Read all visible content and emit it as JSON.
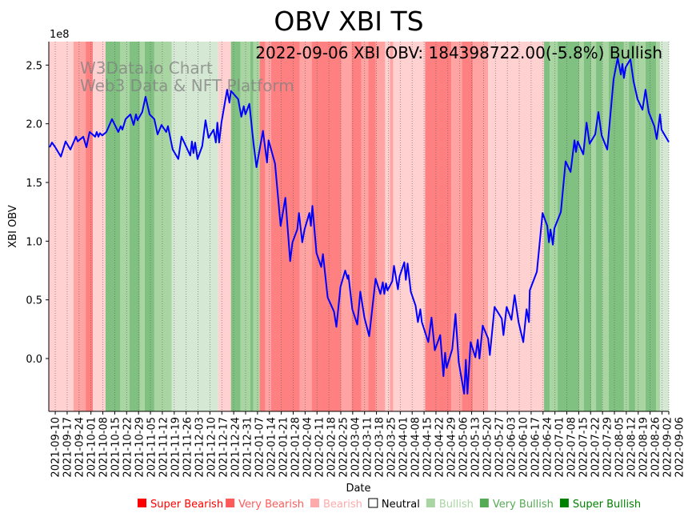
{
  "chart_data": {
    "type": "line",
    "title": "OBV XBI TS",
    "annotation": "2022-09-06 XBI OBV: 184398722.00(-5.8%) Bullish",
    "watermark": [
      "W3Data.io Chart",
      "Web3 Data & NFT Platform"
    ],
    "xlabel": "Date",
    "ylabel": "XBI OBV",
    "y_scale_label": "1e8",
    "x_origin_date": "2021-09-10",
    "x_units": "days since x_origin_date",
    "y_units": "1e8",
    "xlim": [
      -3.8,
      361
    ],
    "ylim": [
      -0.45,
      2.7
    ],
    "yticks": [
      0.0,
      0.5,
      1.0,
      1.5,
      2.0,
      2.5
    ],
    "ytick_labels": [
      "0.0",
      "0.5",
      "1.0",
      "1.5",
      "2.0",
      "2.5"
    ],
    "xtick_labels": [
      "2021-09-10",
      "2021-09-17",
      "2021-09-24",
      "2021-10-01",
      "2021-10-08",
      "2021-10-15",
      "2021-10-22",
      "2021-10-29",
      "2021-11-05",
      "2021-11-12",
      "2021-11-19",
      "2021-11-26",
      "2021-12-03",
      "2021-12-10",
      "2021-12-17",
      "2021-12-24",
      "2021-12-31",
      "2022-01-07",
      "2022-01-14",
      "2022-01-21",
      "2022-01-28",
      "2022-02-04",
      "2022-02-11",
      "2022-02-18",
      "2022-02-25",
      "2022-03-04",
      "2022-03-11",
      "2022-03-18",
      "2022-03-25",
      "2022-04-01",
      "2022-04-08",
      "2022-04-15",
      "2022-04-22",
      "2022-04-29",
      "2022-05-06",
      "2022-05-13",
      "2022-05-20",
      "2022-05-27",
      "2022-06-03",
      "2022-06-10",
      "2022-06-17",
      "2022-06-24",
      "2022-07-01",
      "2022-07-08",
      "2022-07-15",
      "2022-07-22",
      "2022-07-29",
      "2022-08-05",
      "2022-08-12",
      "2022-08-19",
      "2022-08-26",
      "2022-09-02",
      "2022-09-06"
    ],
    "xtick_days": [
      0,
      7,
      14,
      21,
      28,
      35,
      42,
      49,
      56,
      63,
      70,
      77,
      84,
      91,
      98,
      105,
      112,
      119,
      126,
      133,
      140,
      147,
      154,
      161,
      168,
      175,
      182,
      189,
      196,
      203,
      210,
      217,
      224,
      231,
      238,
      245,
      252,
      259,
      266,
      273,
      280,
      287,
      294,
      301,
      308,
      315,
      322,
      329,
      336,
      343,
      350,
      357,
      361
    ],
    "grid": "vertical dotted",
    "line_color": "#0000ff",
    "series": [
      {
        "name": "XBI OBV",
        "points": [
          [
            -3.3,
            1.8
          ],
          [
            -1.9,
            1.84
          ],
          [
            0,
            1.8
          ],
          [
            3.3,
            1.72
          ],
          [
            6.1,
            1.85
          ],
          [
            8.9,
            1.78
          ],
          [
            12.2,
            1.89
          ],
          [
            13.2,
            1.85
          ],
          [
            16.5,
            1.89
          ],
          [
            18.3,
            1.8
          ],
          [
            20.2,
            1.93
          ],
          [
            23.5,
            1.89
          ],
          [
            24.4,
            1.93
          ],
          [
            25.4,
            1.89
          ],
          [
            26.3,
            1.92
          ],
          [
            27.7,
            1.9
          ],
          [
            30.1,
            1.93
          ],
          [
            33.4,
            2.04
          ],
          [
            37.1,
            1.93
          ],
          [
            38.5,
            1.98
          ],
          [
            39.5,
            1.95
          ],
          [
            41.4,
            2.04
          ],
          [
            44.2,
            2.08
          ],
          [
            46.1,
            1.99
          ],
          [
            47.5,
            2.08
          ],
          [
            48.4,
            2.03
          ],
          [
            51.2,
            2.1
          ],
          [
            53.1,
            2.23
          ],
          [
            55.5,
            2.08
          ],
          [
            58.3,
            2.04
          ],
          [
            60.2,
            1.91
          ],
          [
            62.5,
            1.99
          ],
          [
            65.3,
            1.93
          ],
          [
            66.3,
            1.98
          ],
          [
            69.1,
            1.78
          ],
          [
            72.4,
            1.7
          ],
          [
            74.3,
            1.89
          ],
          [
            79.4,
            1.73
          ],
          [
            80.4,
            1.85
          ],
          [
            81.3,
            1.75
          ],
          [
            82.3,
            1.84
          ],
          [
            83.7,
            1.7
          ],
          [
            86.5,
            1.81
          ],
          [
            88.4,
            2.03
          ],
          [
            90.2,
            1.88
          ],
          [
            93.1,
            1.95
          ],
          [
            94.5,
            1.84
          ],
          [
            95.4,
            2.01
          ],
          [
            96.4,
            1.84
          ],
          [
            97.8,
            2.01
          ],
          [
            101.1,
            2.29
          ],
          [
            102.5,
            2.18
          ],
          [
            103.4,
            2.28
          ],
          [
            107.6,
            2.21
          ],
          [
            109.5,
            2.06
          ],
          [
            110.9,
            2.15
          ],
          [
            111.9,
            2.08
          ],
          [
            114.2,
            2.17
          ],
          [
            116.6,
            1.84
          ],
          [
            118.4,
            1.63
          ],
          [
            122.2,
            1.94
          ],
          [
            124.6,
            1.67
          ],
          [
            125.5,
            1.86
          ],
          [
            129.3,
            1.66
          ],
          [
            132.6,
            1.13
          ],
          [
            135.4,
            1.37
          ],
          [
            138.2,
            0.83
          ],
          [
            139.6,
            0.99
          ],
          [
            142.4,
            1.1
          ],
          [
            143.4,
            1.24
          ],
          [
            145.3,
            0.99
          ],
          [
            146.7,
            1.1
          ],
          [
            149.5,
            1.24
          ],
          [
            150.4,
            1.13
          ],
          [
            151.3,
            1.3
          ],
          [
            153.7,
            0.9
          ],
          [
            156.5,
            0.78
          ],
          [
            157.5,
            0.89
          ],
          [
            160.3,
            0.52
          ],
          [
            164.0,
            0.4
          ],
          [
            165.4,
            0.27
          ],
          [
            167.8,
            0.61
          ],
          [
            170.6,
            0.75
          ],
          [
            172.0,
            0.68
          ],
          [
            172.5,
            0.71
          ],
          [
            174.8,
            0.42
          ],
          [
            177.7,
            0.29
          ],
          [
            179.5,
            0.57
          ],
          [
            181.9,
            0.35
          ],
          [
            184.7,
            0.19
          ],
          [
            188.5,
            0.68
          ],
          [
            191.3,
            0.55
          ],
          [
            192.7,
            0.65
          ],
          [
            193.6,
            0.55
          ],
          [
            194.6,
            0.64
          ],
          [
            195.5,
            0.58
          ],
          [
            198.3,
            0.66
          ],
          [
            199.3,
            0.79
          ],
          [
            201.6,
            0.59
          ],
          [
            202.6,
            0.7
          ],
          [
            205.4,
            0.82
          ],
          [
            206.3,
            0.67
          ],
          [
            207.3,
            0.81
          ],
          [
            209.2,
            0.57
          ],
          [
            212.0,
            0.45
          ],
          [
            213.4,
            0.31
          ],
          [
            214.8,
            0.42
          ],
          [
            215.7,
            0.31
          ],
          [
            219.5,
            0.14
          ],
          [
            221.4,
            0.35
          ],
          [
            223.3,
            0.07
          ],
          [
            226.5,
            0.2
          ],
          [
            228.4,
            -0.15
          ],
          [
            229.4,
            0.05
          ],
          [
            230.3,
            -0.08
          ],
          [
            233.6,
            0.08
          ],
          [
            235.5,
            0.38
          ],
          [
            237.4,
            -0.03
          ],
          [
            240.6,
            -0.3
          ],
          [
            241.6,
            -0.01
          ],
          [
            242.5,
            -0.3
          ],
          [
            244.4,
            0.14
          ],
          [
            247.2,
            0.01
          ],
          [
            248.6,
            0.16
          ],
          [
            249.6,
            0.0
          ],
          [
            251.5,
            0.28
          ],
          [
            254.7,
            0.17
          ],
          [
            255.7,
            0.03
          ],
          [
            258.5,
            0.44
          ],
          [
            262.7,
            0.34
          ],
          [
            263.7,
            0.2
          ],
          [
            265.6,
            0.44
          ],
          [
            268.4,
            0.33
          ],
          [
            270.3,
            0.54
          ],
          [
            272.6,
            0.31
          ],
          [
            275.4,
            0.14
          ],
          [
            277.3,
            0.42
          ],
          [
            278.7,
            0.31
          ],
          [
            279.2,
            0.58
          ],
          [
            283.4,
            0.74
          ],
          [
            286.7,
            1.24
          ],
          [
            289.5,
            1.13
          ],
          [
            290.5,
            0.99
          ],
          [
            291.4,
            1.1
          ],
          [
            292.8,
            0.97
          ],
          [
            293.7,
            1.11
          ],
          [
            297.5,
            1.25
          ],
          [
            300.3,
            1.68
          ],
          [
            303.2,
            1.59
          ],
          [
            305.5,
            1.86
          ],
          [
            306.4,
            1.76
          ],
          [
            307.4,
            1.85
          ],
          [
            310.7,
            1.74
          ],
          [
            312.6,
            2.01
          ],
          [
            314.4,
            1.83
          ],
          [
            317.7,
            1.91
          ],
          [
            319.6,
            2.1
          ],
          [
            321.5,
            1.9
          ],
          [
            324.8,
            1.78
          ],
          [
            328.5,
            2.38
          ],
          [
            330.9,
            2.56
          ],
          [
            332.8,
            2.42
          ],
          [
            333.7,
            2.51
          ],
          [
            334.6,
            2.39
          ],
          [
            335.6,
            2.48
          ],
          [
            338.4,
            2.55
          ],
          [
            340.3,
            2.36
          ],
          [
            342.6,
            2.21
          ],
          [
            345.5,
            2.12
          ],
          [
            347.3,
            2.29
          ],
          [
            349.2,
            2.1
          ],
          [
            352.5,
            1.98
          ],
          [
            353.9,
            1.87
          ],
          [
            355.8,
            2.08
          ],
          [
            356.7,
            1.95
          ],
          [
            361,
            1.844
          ]
        ]
      }
    ],
    "band_colors": {
      "super_bearish": "#ff8080",
      "very_bearish": "#ffa3a3",
      "bearish": "#ffd1d1",
      "bullish": "#d5e8d4",
      "very_bullish": "#a8d5a1",
      "super_bullish": "#80c080"
    },
    "bands": [
      [
        -4.2,
        10.8,
        "bearish"
      ],
      [
        10.8,
        17.9,
        "very_bearish"
      ],
      [
        17.9,
        22.1,
        "super_bearish"
      ],
      [
        22.1,
        29.6,
        "bearish"
      ],
      [
        29.6,
        38.1,
        "super_bullish"
      ],
      [
        38.1,
        43.7,
        "very_bullish"
      ],
      [
        43.7,
        49.8,
        "super_bullish"
      ],
      [
        49.8,
        52.6,
        "very_bullish"
      ],
      [
        52.6,
        58.3,
        "super_bullish"
      ],
      [
        58.3,
        68.6,
        "very_bullish"
      ],
      [
        68.6,
        95.9,
        "bullish"
      ],
      [
        95.9,
        103.4,
        "bearish"
      ],
      [
        103.4,
        109,
        "super_bullish"
      ],
      [
        109,
        114.7,
        "very_bullish"
      ],
      [
        114.7,
        116.6,
        "super_bullish"
      ],
      [
        116.6,
        120.3,
        "very_bullish"
      ],
      [
        120.3,
        123.6,
        "super_bearish"
      ],
      [
        123.6,
        126.9,
        "very_bearish"
      ],
      [
        126.9,
        143.8,
        "super_bearish"
      ],
      [
        143.8,
        150.9,
        "very_bearish"
      ],
      [
        150.9,
        168.3,
        "super_bearish"
      ],
      [
        168.3,
        174.4,
        "very_bearish"
      ],
      [
        174.4,
        180,
        "super_bearish"
      ],
      [
        180,
        184.2,
        "very_bearish"
      ],
      [
        184.2,
        188.5,
        "super_bearish"
      ],
      [
        188.5,
        194.1,
        "very_bearish"
      ],
      [
        194.1,
        196.9,
        "bearish"
      ],
      [
        196.9,
        198.8,
        "very_bearish"
      ],
      [
        198.8,
        217.6,
        "bearish"
      ],
      [
        217.6,
        233.1,
        "super_bearish"
      ],
      [
        233.1,
        239.2,
        "very_bearish"
      ],
      [
        239.2,
        245.8,
        "super_bearish"
      ],
      [
        245.8,
        254.7,
        "very_bearish"
      ],
      [
        254.7,
        287.6,
        "bearish"
      ],
      [
        287.6,
        290.9,
        "super_bullish"
      ],
      [
        290.9,
        295.6,
        "very_bullish"
      ],
      [
        295.6,
        308.3,
        "super_bullish"
      ],
      [
        308.3,
        311.1,
        "very_bullish"
      ],
      [
        311.1,
        315.4,
        "super_bullish"
      ],
      [
        315.4,
        318.2,
        "very_bullish"
      ],
      [
        318.2,
        321.9,
        "super_bullish"
      ],
      [
        321.9,
        325.7,
        "very_bullish"
      ],
      [
        325.7,
        334.6,
        "super_bullish"
      ],
      [
        334.6,
        337.5,
        "very_bullish"
      ],
      [
        337.5,
        341.2,
        "super_bullish"
      ],
      [
        341.2,
        347.3,
        "very_bullish"
      ],
      [
        347.3,
        353.5,
        "super_bullish"
      ],
      [
        353.5,
        355.8,
        "very_bullish"
      ],
      [
        355.8,
        361,
        "bullish"
      ]
    ],
    "legend": {
      "placement": "bottom-right",
      "items": [
        {
          "label": "Super Bearish",
          "color": "#ff0000"
        },
        {
          "label": "Very Bearish",
          "color": "#ff5a5a"
        },
        {
          "label": "Bearish",
          "color": "#ffaaaa"
        },
        {
          "label": "Neutral",
          "color": "#000000",
          "hollow": true
        },
        {
          "label": "Bullish",
          "color": "#a8d5a1"
        },
        {
          "label": "Very Bullish",
          "color": "#55aa55"
        },
        {
          "label": "Super Bullish",
          "color": "#008000"
        }
      ]
    }
  }
}
